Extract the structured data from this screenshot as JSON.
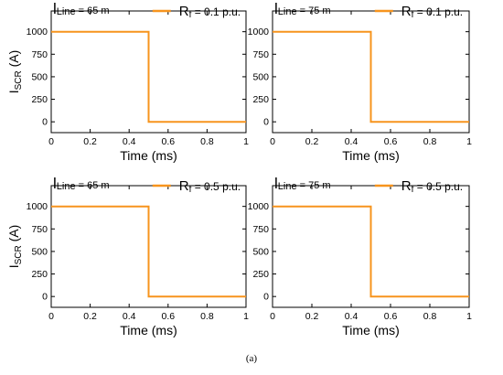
{
  "caption": "(a)",
  "colors": {
    "series": "#f7941d",
    "axis": "#000000",
    "text": "#000000"
  },
  "chart_data": [
    {
      "type": "line",
      "line_label": {
        "prefix": "l",
        "sub": "Line",
        "rest": " = 65 m"
      },
      "legend": {
        "prefix": "R",
        "sub": "f",
        "rest": " = 0.1 p.u."
      },
      "ylabel": {
        "main": "I",
        "sub": "SCR",
        "rest": " (A)"
      },
      "xlabel": "Time (ms)",
      "xlim": [
        0,
        1
      ],
      "ylim": [
        -120,
        1230
      ],
      "xticks": [
        0,
        0.2,
        0.4,
        0.6,
        0.8,
        1
      ],
      "xtick_labels": [
        "0",
        "0.2",
        "0.4",
        "0.6",
        "0.8",
        "1"
      ],
      "yticks": [
        0,
        250,
        500,
        750,
        1000
      ],
      "ytick_labels": [
        "0",
        "250",
        "500",
        "750",
        "1000"
      ],
      "series": [
        {
          "x": [
            0,
            0.5,
            0.5,
            1
          ],
          "y": [
            1000,
            1000,
            0,
            0
          ]
        }
      ]
    },
    {
      "type": "line",
      "line_label": {
        "prefix": "l",
        "sub": "Line",
        "rest": " = 75 m"
      },
      "legend": {
        "prefix": "R",
        "sub": "f",
        "rest": " = 0.1 p.u."
      },
      "ylabel": null,
      "xlabel": "Time (ms)",
      "xlim": [
        0,
        1
      ],
      "ylim": [
        -120,
        1230
      ],
      "xticks": [
        0,
        0.2,
        0.4,
        0.6,
        0.8,
        1
      ],
      "xtick_labels": [
        "0",
        "0.2",
        "0.4",
        "0.6",
        "0.8",
        "1"
      ],
      "yticks": [
        0,
        250,
        500,
        750,
        1000
      ],
      "ytick_labels": [
        "0",
        "250",
        "500",
        "750",
        "1000"
      ],
      "series": [
        {
          "x": [
            0,
            0.5,
            0.5,
            1
          ],
          "y": [
            1000,
            1000,
            0,
            0
          ]
        }
      ]
    },
    {
      "type": "line",
      "line_label": {
        "prefix": "l",
        "sub": "Line",
        "rest": " = 65 m"
      },
      "legend": {
        "prefix": "R",
        "sub": "f",
        "rest": " = 0.5 p.u."
      },
      "ylabel": {
        "main": "I",
        "sub": "SCR",
        "rest": " (A)"
      },
      "xlabel": "Time (ms)",
      "xlim": [
        0,
        1
      ],
      "ylim": [
        -120,
        1230
      ],
      "xticks": [
        0,
        0.2,
        0.4,
        0.6,
        0.8,
        1
      ],
      "xtick_labels": [
        "0",
        "0.2",
        "0.4",
        "0.6",
        "0.8",
        "1"
      ],
      "yticks": [
        0,
        250,
        500,
        750,
        1000
      ],
      "ytick_labels": [
        "0",
        "250",
        "500",
        "750",
        "1000"
      ],
      "series": [
        {
          "x": [
            0,
            0.5,
            0.5,
            1
          ],
          "y": [
            1000,
            1000,
            0,
            0
          ]
        }
      ]
    },
    {
      "type": "line",
      "line_label": {
        "prefix": "l",
        "sub": "Line",
        "rest": " = 75 m"
      },
      "legend": {
        "prefix": "R",
        "sub": "f",
        "rest": " = 0.5 p.u."
      },
      "ylabel": null,
      "xlabel": "Time (ms)",
      "xlim": [
        0,
        1
      ],
      "ylim": [
        -120,
        1230
      ],
      "xticks": [
        0,
        0.2,
        0.4,
        0.6,
        0.8,
        1
      ],
      "xtick_labels": [
        "0",
        "0.2",
        "0.4",
        "0.6",
        "0.8",
        "1"
      ],
      "yticks": [
        0,
        250,
        500,
        750,
        1000
      ],
      "ytick_labels": [
        "0",
        "250",
        "500",
        "750",
        "1000"
      ],
      "series": [
        {
          "x": [
            0,
            0.5,
            0.5,
            1
          ],
          "y": [
            1000,
            1000,
            0,
            0
          ]
        }
      ]
    }
  ]
}
